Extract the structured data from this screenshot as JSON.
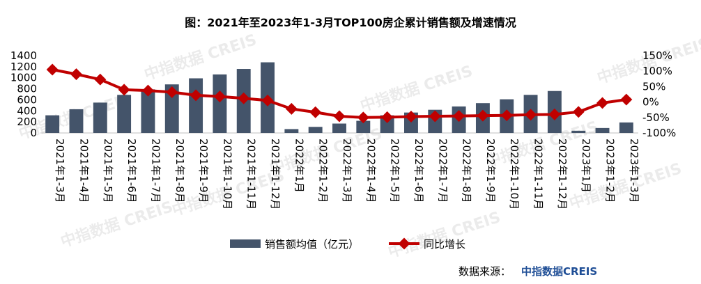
{
  "chart_data": {
    "type": "bar",
    "title": "图：2021年至2023年1-3月TOP100房企累计销售额及增速情况",
    "categories": [
      "2021年1-3月",
      "2021年1-4月",
      "2021年1-5月",
      "2021年1-6月",
      "2021年1-7月",
      "2021年1-8月",
      "2021年1-9月",
      "2021年1-10月",
      "2021年1-11月",
      "2021年1-12月",
      "2022年1月",
      "2022年1-2月",
      "2022年1-3月",
      "2022年1-4月",
      "2022年1-5月",
      "2022年1-6月",
      "2022年1-7月",
      "2022年1-8月",
      "2022年1-9月",
      "2022年1-10月",
      "2022年1-11月",
      "2022年1-12月",
      "2023年1月",
      "2023年1-2月",
      "2023年1-3月"
    ],
    "series": [
      {
        "name": "销售额均值（亿元）",
        "type": "bar",
        "axis": "left",
        "color": "#44546a",
        "values": [
          320,
          430,
          550,
          690,
          790,
          880,
          990,
          1060,
          1160,
          1280,
          70,
          110,
          170,
          220,
          320,
          370,
          420,
          480,
          540,
          610,
          690,
          760,
          40,
          90,
          190
        ]
      },
      {
        "name": "同比增长",
        "type": "line",
        "axis": "right",
        "color": "#c00000",
        "values": [
          105,
          90,
          73,
          40,
          37,
          32,
          22,
          18,
          12,
          5,
          -22,
          -33,
          -46,
          -50,
          -49,
          -47,
          -46,
          -45,
          -44,
          -43,
          -41,
          -40,
          -32,
          -3,
          8
        ]
      }
    ],
    "ylim_left": [
      0,
      1400
    ],
    "yticks_left": [
      "0",
      "200",
      "400",
      "600",
      "800",
      "1000",
      "1200",
      "1400"
    ],
    "ylim_right": [
      -100,
      150
    ],
    "yticks_right": [
      "-100%",
      "-50%",
      "0%",
      "50%",
      "100%",
      "150%"
    ],
    "grid": false,
    "legend_position": "bottom"
  },
  "source": {
    "label": "数据来源：",
    "brand": "中指数据CREIS"
  },
  "watermark": "中指数据 CREIS"
}
